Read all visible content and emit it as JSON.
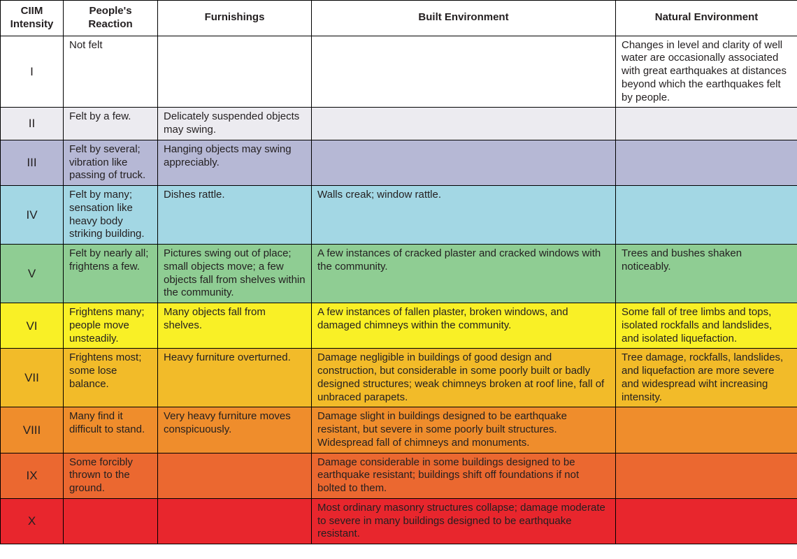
{
  "table": {
    "columns": [
      {
        "key": "intensity",
        "label": "CIIM Intensity",
        "class": "c-intensity"
      },
      {
        "key": "reaction",
        "label": "People's Reaction",
        "class": "c-reaction"
      },
      {
        "key": "furnish",
        "label": "Furnishings",
        "class": "c-furnish"
      },
      {
        "key": "built",
        "label": "Built Environment",
        "class": "c-built"
      },
      {
        "key": "natural",
        "label": "Natural Environment",
        "class": "c-natural"
      }
    ],
    "header_bg": "#ffffff",
    "header_fontsize": 16,
    "cell_fontsize": 15,
    "border_color": "#000000",
    "text_color": "#231f20",
    "rows": [
      {
        "bg": "#ffffff",
        "intensity": "I",
        "reaction": "Not felt",
        "furnish": "",
        "built": "",
        "natural": "Changes in level and clarity of well water are occasionally associated with great earthquakes at distances beyond which the earthquakes felt by people."
      },
      {
        "bg": "#ecebf0",
        "intensity": "II",
        "reaction": "Felt by a few.",
        "furnish": "Delicately suspended objects may swing.",
        "built": "",
        "natural": ""
      },
      {
        "bg": "#b6b8d5",
        "intensity": "III",
        "reaction": "Felt by several; vibration like passing of truck.",
        "furnish": "Hanging objects may swing appreciably.",
        "built": "",
        "natural": ""
      },
      {
        "bg": "#a3d7e4",
        "intensity": "IV",
        "reaction": "Felt by many; sensation like heavy body striking building.",
        "furnish": "Dishes rattle.",
        "built": "Walls creak; window rattle.",
        "natural": ""
      },
      {
        "bg": "#8fcd93",
        "intensity": "V",
        "reaction": "Felt by nearly all; frightens a few.",
        "furnish": "Pictures swing out of place; small objects move; a few objects fall from shelves within the community.",
        "built": "A few instances of cracked plaster and cracked windows with the community.",
        "natural": "Trees and bushes shaken noticeably."
      },
      {
        "bg": "#f9f026",
        "intensity": "VI",
        "reaction": "Frightens many; people move unsteadily.",
        "furnish": "Many objects fall from shelves.",
        "built": "A few instances of fallen plaster, broken windows, and damaged chimneys within the community.",
        "natural": "Some fall of tree limbs and tops, isolated rockfalls and landslides, and isolated liquefaction."
      },
      {
        "bg": "#f2bb29",
        "intensity": "VII",
        "reaction": "Frightens most; some lose balance.",
        "furnish": "Heavy furniture overturned.",
        "built": "Damage negligible in buildings of good design and construction, but considerable in some poorly built or badly designed structures; weak chimneys broken at roof line, fall of unbraced parapets.",
        "natural": "Tree damage, rockfalls, landslides, and liquefaction are more severe and widespread wiht increasing intensity."
      },
      {
        "bg": "#ef8d2c",
        "intensity": "VIII",
        "reaction": "Many find it difficult to stand.",
        "furnish": "Very heavy furniture moves conspicuously.",
        "built": "Damage slight in buildings designed to be earthquake resistant, but severe in some poorly built structures. Widespread fall of chimneys and monuments.",
        "natural": ""
      },
      {
        "bg": "#eb6830",
        "intensity": "IX",
        "reaction": "Some forcibly thrown to the ground.",
        "furnish": "",
        "built": "Damage considerable in some buildings designed to be  earthquake resistant; buildings shift off foundations if not bolted to them.",
        "natural": ""
      },
      {
        "bg": "#e8262d",
        "intensity": "X",
        "reaction": "",
        "furnish": "",
        "built": "Most ordinary masonry structures collapse; damage moderate to severe in many buildings designed to be earthquake resistant.",
        "natural": ""
      }
    ]
  }
}
